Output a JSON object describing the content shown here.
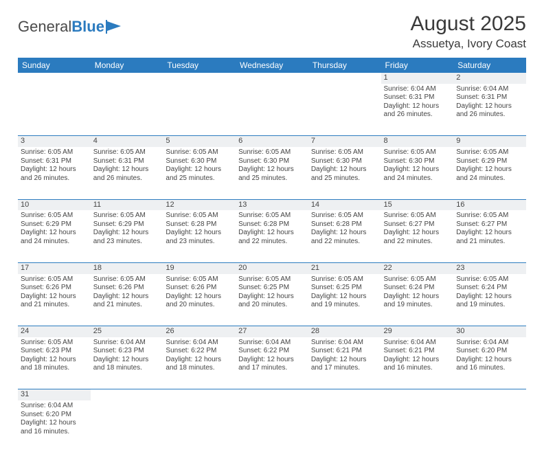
{
  "logo": {
    "left": "General",
    "right": "Blue"
  },
  "title": "August 2025",
  "location": "Assuetya, Ivory Coast",
  "colors": {
    "header_bg": "#2b7bbf",
    "header_fg": "#ffffff",
    "daynum_bg": "#eef0f2",
    "rule": "#2b7bbf",
    "text": "#444444",
    "logo_gray": "#4a4a4a",
    "logo_blue": "#2b7bbf"
  },
  "weekdays": [
    "Sunday",
    "Monday",
    "Tuesday",
    "Wednesday",
    "Thursday",
    "Friday",
    "Saturday"
  ],
  "weeks": [
    [
      null,
      null,
      null,
      null,
      null,
      {
        "n": "1",
        "sr": "6:04 AM",
        "ss": "6:31 PM",
        "dh": "12",
        "dm": "26"
      },
      {
        "n": "2",
        "sr": "6:04 AM",
        "ss": "6:31 PM",
        "dh": "12",
        "dm": "26"
      }
    ],
    [
      {
        "n": "3",
        "sr": "6:05 AM",
        "ss": "6:31 PM",
        "dh": "12",
        "dm": "26"
      },
      {
        "n": "4",
        "sr": "6:05 AM",
        "ss": "6:31 PM",
        "dh": "12",
        "dm": "26"
      },
      {
        "n": "5",
        "sr": "6:05 AM",
        "ss": "6:30 PM",
        "dh": "12",
        "dm": "25"
      },
      {
        "n": "6",
        "sr": "6:05 AM",
        "ss": "6:30 PM",
        "dh": "12",
        "dm": "25"
      },
      {
        "n": "7",
        "sr": "6:05 AM",
        "ss": "6:30 PM",
        "dh": "12",
        "dm": "25"
      },
      {
        "n": "8",
        "sr": "6:05 AM",
        "ss": "6:30 PM",
        "dh": "12",
        "dm": "24"
      },
      {
        "n": "9",
        "sr": "6:05 AM",
        "ss": "6:29 PM",
        "dh": "12",
        "dm": "24"
      }
    ],
    [
      {
        "n": "10",
        "sr": "6:05 AM",
        "ss": "6:29 PM",
        "dh": "12",
        "dm": "24"
      },
      {
        "n": "11",
        "sr": "6:05 AM",
        "ss": "6:29 PM",
        "dh": "12",
        "dm": "23"
      },
      {
        "n": "12",
        "sr": "6:05 AM",
        "ss": "6:28 PM",
        "dh": "12",
        "dm": "23"
      },
      {
        "n": "13",
        "sr": "6:05 AM",
        "ss": "6:28 PM",
        "dh": "12",
        "dm": "22"
      },
      {
        "n": "14",
        "sr": "6:05 AM",
        "ss": "6:28 PM",
        "dh": "12",
        "dm": "22"
      },
      {
        "n": "15",
        "sr": "6:05 AM",
        "ss": "6:27 PM",
        "dh": "12",
        "dm": "22"
      },
      {
        "n": "16",
        "sr": "6:05 AM",
        "ss": "6:27 PM",
        "dh": "12",
        "dm": "21"
      }
    ],
    [
      {
        "n": "17",
        "sr": "6:05 AM",
        "ss": "6:26 PM",
        "dh": "12",
        "dm": "21"
      },
      {
        "n": "18",
        "sr": "6:05 AM",
        "ss": "6:26 PM",
        "dh": "12",
        "dm": "21"
      },
      {
        "n": "19",
        "sr": "6:05 AM",
        "ss": "6:26 PM",
        "dh": "12",
        "dm": "20"
      },
      {
        "n": "20",
        "sr": "6:05 AM",
        "ss": "6:25 PM",
        "dh": "12",
        "dm": "20"
      },
      {
        "n": "21",
        "sr": "6:05 AM",
        "ss": "6:25 PM",
        "dh": "12",
        "dm": "19"
      },
      {
        "n": "22",
        "sr": "6:05 AM",
        "ss": "6:24 PM",
        "dh": "12",
        "dm": "19"
      },
      {
        "n": "23",
        "sr": "6:05 AM",
        "ss": "6:24 PM",
        "dh": "12",
        "dm": "19"
      }
    ],
    [
      {
        "n": "24",
        "sr": "6:05 AM",
        "ss": "6:23 PM",
        "dh": "12",
        "dm": "18"
      },
      {
        "n": "25",
        "sr": "6:04 AM",
        "ss": "6:23 PM",
        "dh": "12",
        "dm": "18"
      },
      {
        "n": "26",
        "sr": "6:04 AM",
        "ss": "6:22 PM",
        "dh": "12",
        "dm": "18"
      },
      {
        "n": "27",
        "sr": "6:04 AM",
        "ss": "6:22 PM",
        "dh": "12",
        "dm": "17"
      },
      {
        "n": "28",
        "sr": "6:04 AM",
        "ss": "6:21 PM",
        "dh": "12",
        "dm": "17"
      },
      {
        "n": "29",
        "sr": "6:04 AM",
        "ss": "6:21 PM",
        "dh": "12",
        "dm": "16"
      },
      {
        "n": "30",
        "sr": "6:04 AM",
        "ss": "6:20 PM",
        "dh": "12",
        "dm": "16"
      }
    ],
    [
      {
        "n": "31",
        "sr": "6:04 AM",
        "ss": "6:20 PM",
        "dh": "12",
        "dm": "16"
      },
      null,
      null,
      null,
      null,
      null,
      null
    ]
  ],
  "labels": {
    "sunrise": "Sunrise:",
    "sunset": "Sunset:",
    "daylight_prefix": "Daylight:",
    "hours_word": "hours",
    "and_word": "and",
    "minutes_word": "minutes."
  }
}
